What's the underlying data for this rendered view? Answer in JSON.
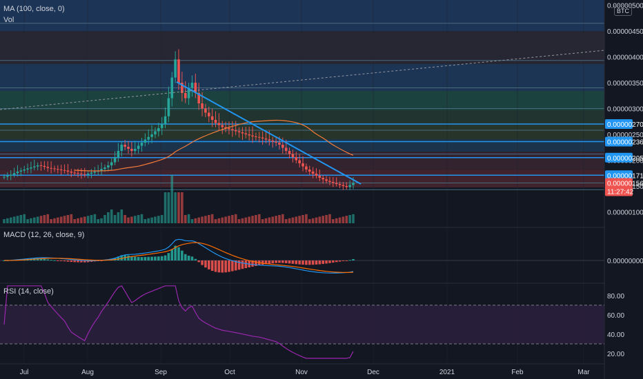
{
  "studies": {
    "ma_label": "MA (100, close, 0)",
    "vol_label": "Vol",
    "macd_label": "MACD (12, 26, close, 9)",
    "rsi_label": "RSI (14, close)"
  },
  "currency_badge": "BTC",
  "colors": {
    "background": "#131722",
    "up": "#26a69a",
    "down": "#ef5350",
    "trendline": "#2196f3",
    "ma": "#f57c3a",
    "macd_line": "#2196f3",
    "signal_line": "#ff6d00",
    "rsi_line": "#9c27b0",
    "rsi_band": "#2a1f3d"
  },
  "chart_data": [
    {
      "type": "candlestick",
      "pane": "price",
      "x_tick_labels": [
        "Jul",
        "Aug",
        "Sep",
        "Oct",
        "Nov",
        "Dec",
        "2021",
        "Feb",
        "Mar"
      ],
      "y_tick_labels": [
        "0.00000500",
        "0.00000450",
        "0.00000400",
        "0.00000350",
        "0.00000300",
        "0.00000250",
        "0.00000200",
        "0.00000150",
        "0.00000100"
      ],
      "ylim": [
        7e-07,
        5.1e-06
      ],
      "ma": "MA (100, close, 0)",
      "price_tags": [
        {
          "label": "0.00000270",
          "value": 2.7e-06,
          "color": "#2196f3"
        },
        {
          "label": "0.00000236",
          "value": 2.36e-06,
          "color": "#2196f3"
        },
        {
          "label": "0.00000205",
          "value": 2.05e-06,
          "color": "#2196f3"
        },
        {
          "label": "0.00000171",
          "value": 1.71e-06,
          "color": "#2196f3"
        },
        {
          "label": "0.00000156",
          "value": 1.56e-06,
          "color": "#ef5350"
        },
        {
          "label": "11:27:42",
          "value": 1.4e-06,
          "color": "#ef5350"
        }
      ],
      "horizontal_levels": [
        4.65e-06,
        3.93e-06,
        3.4e-06,
        3e-06,
        2.7e-06,
        2.58e-06,
        2.36e-06,
        2.12e-06,
        2.05e-06,
        1.71e-06,
        1.56e-06,
        1.43e-06
      ],
      "closes": [
        168,
        170,
        172,
        175,
        178,
        180,
        182,
        184,
        186,
        188,
        190,
        189,
        187,
        185,
        184,
        183,
        182,
        181,
        180,
        178,
        176,
        175,
        174,
        173,
        172,
        174,
        176,
        178,
        180,
        183,
        186,
        190,
        196,
        205,
        218,
        230,
        226,
        222,
        218,
        222,
        228,
        234,
        240,
        245,
        250,
        256,
        262,
        270,
        285,
        320,
        360,
        395,
        350,
        330,
        320,
        340,
        350,
        330,
        310,
        300,
        292,
        285,
        278,
        272,
        268,
        264,
        262,
        260,
        258,
        256,
        254,
        252,
        250,
        248,
        246,
        245,
        244,
        242,
        240,
        238,
        236,
        234,
        230,
        224,
        218,
        212,
        206,
        200,
        194,
        188,
        182,
        178,
        174,
        170,
        166,
        163,
        160,
        158,
        156,
        154,
        152,
        150,
        148,
        152,
        156
      ]
    },
    {
      "type": "bar",
      "pane": "volume",
      "label": "Vol"
    },
    {
      "type": "line",
      "pane": "macd",
      "label": "MACD (12, 26, close, 9)",
      "y_tick_labels": [
        "0.00000000"
      ],
      "series": [
        {
          "name": "MACD"
        },
        {
          "name": "Signal"
        }
      ]
    },
    {
      "type": "line",
      "pane": "rsi",
      "label": "RSI (14, close)",
      "y_tick_labels": [
        "80.00",
        "60.00",
        "40.00",
        "20.00"
      ],
      "ylim": [
        10,
        92
      ],
      "bands": [
        70,
        30
      ]
    }
  ]
}
